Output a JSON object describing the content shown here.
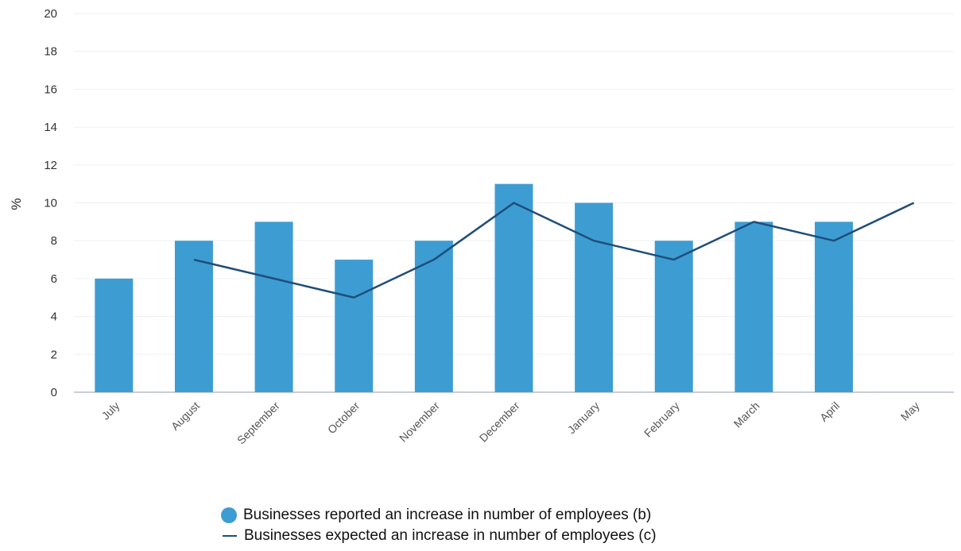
{
  "chart_data": {
    "type": "bar",
    "categories": [
      "July",
      "August",
      "September",
      "October",
      "November",
      "December",
      "January",
      "February",
      "March",
      "April",
      "May"
    ],
    "ylabel": "%",
    "ylim": [
      0,
      20
    ],
    "yticks": [
      0,
      2,
      4,
      6,
      8,
      10,
      12,
      14,
      16,
      18,
      20
    ],
    "grid": true,
    "legend_position": "bottom",
    "series": [
      {
        "name": "Businesses reported an increase in number of employees (b)",
        "kind": "bar",
        "color": "#3d9dd3",
        "values": [
          6,
          8,
          9,
          7,
          8,
          11,
          10,
          8,
          9,
          9,
          null
        ]
      },
      {
        "name": "Businesses expected an increase in number of employees (c)",
        "kind": "line",
        "color": "#1f4e79",
        "values": [
          null,
          7,
          6,
          5,
          7,
          10,
          8,
          7,
          9,
          8,
          10
        ]
      }
    ]
  }
}
